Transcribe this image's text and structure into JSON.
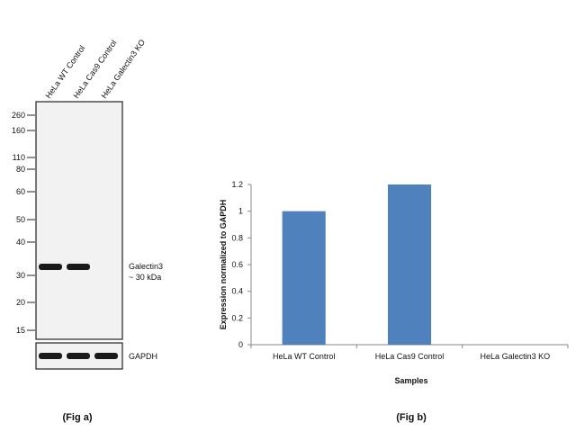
{
  "blot": {
    "lanes": [
      "HeLa WT Control",
      "HeLa Cas9 Control",
      "HeLa Galectin3  KO"
    ],
    "markers": [
      "260",
      "160",
      "110",
      "80",
      "60",
      "50",
      "40",
      "30",
      "20",
      "15"
    ],
    "band_label_line1": "Galectin3",
    "band_label_line2": "~ 30 kDa",
    "loading_label": "GAPDH",
    "caption": "(Fig a)",
    "band_present": [
      true,
      true,
      false
    ],
    "loading_present": [
      true,
      true,
      true
    ]
  },
  "chart_data": {
    "type": "bar",
    "categories": [
      "HeLa WT Control",
      "HeLa Cas9 Control",
      "HeLa Galectin3 KO"
    ],
    "values": [
      1.0,
      1.2,
      0
    ],
    "title": "",
    "xlabel": "Samples",
    "ylabel": "Expression  normalized to GAPDH",
    "ylim": [
      0,
      1.2
    ],
    "yticks": [
      "0",
      "0.2",
      "0.4",
      "0.6",
      "0.8",
      "1",
      "1.2"
    ],
    "bar_color": "#4f81bd",
    "grid": false,
    "caption": "(Fig b)"
  }
}
